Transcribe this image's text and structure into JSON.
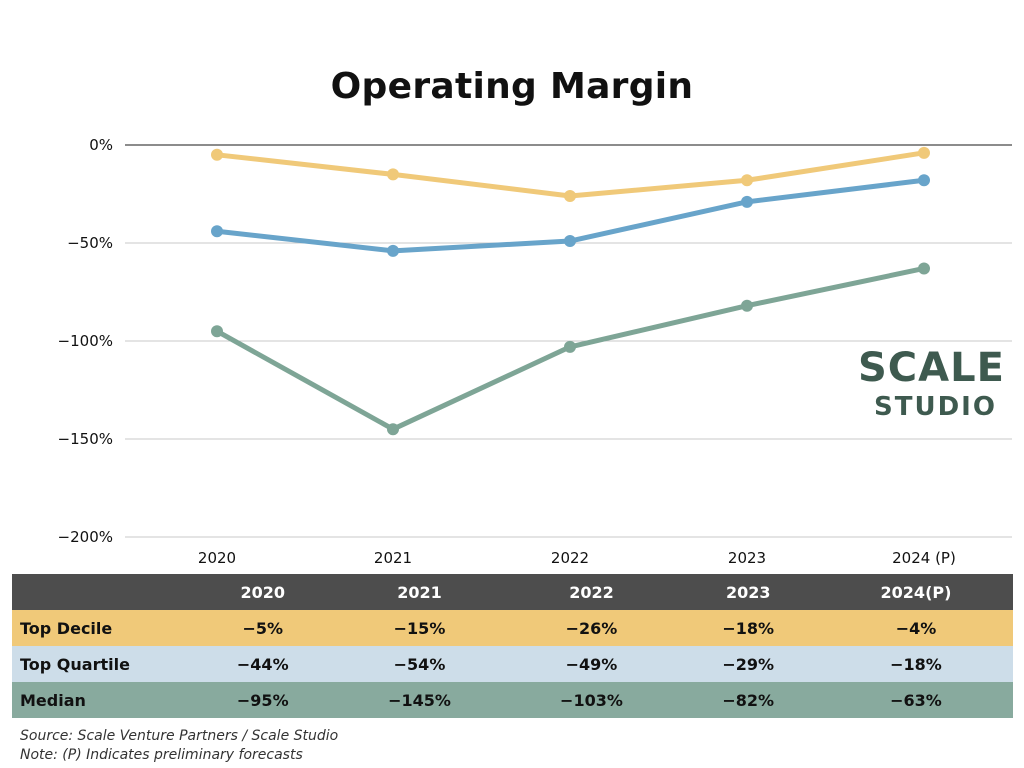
{
  "chart_data": {
    "type": "line",
    "title": "Operating Margin",
    "categories": [
      "2020",
      "2021",
      "2022",
      "2023",
      "2024 (P)"
    ],
    "series": [
      {
        "name": "Top Decile",
        "values": [
          -5,
          -15,
          -26,
          -18,
          -4
        ],
        "color": "#f0c979"
      },
      {
        "name": "Top Quartile",
        "values": [
          -44,
          -54,
          -49,
          -29,
          -18
        ],
        "color": "#68a4ca"
      },
      {
        "name": "Median",
        "values": [
          -95,
          -145,
          -103,
          -82,
          -63
        ],
        "color": "#7ea596"
      }
    ],
    "ylim": [
      -200,
      0
    ],
    "yticks": [
      0,
      -50,
      -100,
      -150,
      -200
    ],
    "ytick_labels": [
      "0%",
      "−50%",
      "−100%",
      "−150%",
      "−200%"
    ],
    "grid": true,
    "legend": "none"
  },
  "table": {
    "headers": [
      "2020",
      "2021",
      "2022",
      "2023",
      "2024(P)"
    ],
    "rows": [
      {
        "label": "Top Decile",
        "cells": [
          "−5%",
          "−15%",
          "−26%",
          "−18%",
          "−4%"
        ]
      },
      {
        "label": "Top Quartile",
        "cells": [
          "−44%",
          "−54%",
          "−49%",
          "−29%",
          "−18%"
        ]
      },
      {
        "label": "Median",
        "cells": [
          "−95%",
          "−145%",
          "−103%",
          "−82%",
          "−63%"
        ]
      }
    ]
  },
  "logo": {
    "line1": "SCALE",
    "line2": "STUDIO"
  },
  "footer": {
    "source": "Source: Scale Venture Partners / Scale Studio",
    "note": "Note: (P) Indicates preliminary forecasts"
  }
}
